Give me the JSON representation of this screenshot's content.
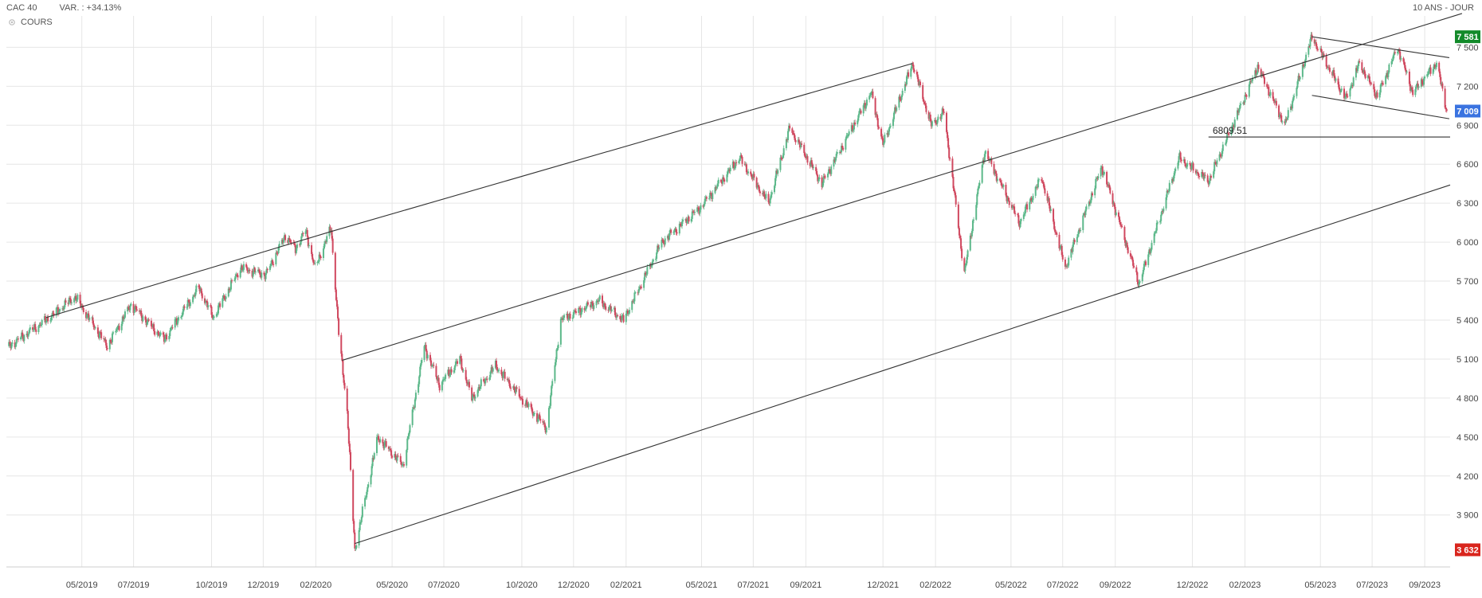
{
  "header": {
    "instrument": "CAC 40",
    "variation": "VAR. : +34.13%",
    "period": "10 ANS - JOUR",
    "series_label": "COURS"
  },
  "icons": {
    "series_legend": "settings-icon"
  },
  "colors": {
    "up": "#5cb88a",
    "down": "#d0485f",
    "grid": "#e6e6e6",
    "line": "#333333",
    "high_badge": "#138a2a",
    "last_badge": "#3a73e0",
    "low_badge": "#d9251d"
  },
  "chart_data": {
    "type": "candlestick",
    "y_ticks": [
      3900,
      4200,
      4500,
      4800,
      5100,
      5400,
      5700,
      6000,
      6300,
      6600,
      6900,
      7200,
      7500
    ],
    "y_tick_labels": [
      "3 900",
      "4 200",
      "4 500",
      "4 800",
      "5 100",
      "5 400",
      "5 700",
      "6 000",
      "6 300",
      "6 600",
      "6 900",
      "7 200",
      "7 500"
    ],
    "ylim": [
      3500,
      7680
    ],
    "xlim": [
      "2019-02-01",
      "2023-10-01"
    ],
    "x_ticks": [
      "2019-05-01",
      "2019-07-01",
      "2019-10-01",
      "2019-12-01",
      "2020-02-01",
      "2020-05-01",
      "2020-07-01",
      "2020-10-01",
      "2020-12-01",
      "2021-02-01",
      "2021-05-01",
      "2021-07-01",
      "2021-09-01",
      "2021-12-01",
      "2022-02-01",
      "2022-05-01",
      "2022-07-01",
      "2022-09-01",
      "2022-12-01",
      "2023-02-01",
      "2023-05-01",
      "2023-07-01",
      "2023-09-01"
    ],
    "x_tick_labels": [
      "05/2019",
      "07/2019",
      "10/2019",
      "12/2019",
      "02/2020",
      "05/2020",
      "07/2020",
      "10/2020",
      "12/2020",
      "02/2021",
      "05/2021",
      "07/2021",
      "09/2021",
      "12/2021",
      "02/2022",
      "05/2022",
      "07/2022",
      "09/2022",
      "12/2022",
      "02/2023",
      "05/2023",
      "07/2023",
      "09/2023"
    ],
    "price_path": [
      [
        "2019-02-04",
        5200
      ],
      [
        "2019-03-20",
        5400
      ],
      [
        "2019-04-23",
        5580
      ],
      [
        "2019-05-31",
        5200
      ],
      [
        "2019-06-28",
        5520
      ],
      [
        "2019-08-06",
        5250
      ],
      [
        "2019-09-16",
        5650
      ],
      [
        "2019-10-03",
        5420
      ],
      [
        "2019-11-04",
        5800
      ],
      [
        "2019-12-04",
        5750
      ],
      [
        "2019-12-27",
        6050
      ],
      [
        "2020-01-08",
        5950
      ],
      [
        "2020-01-20",
        6090
      ],
      [
        "2020-01-31",
        5800
      ],
      [
        "2020-02-19",
        6110
      ],
      [
        "2020-02-28",
        5300
      ],
      [
        "2020-03-09",
        4700
      ],
      [
        "2020-03-18",
        3632
      ],
      [
        "2020-04-14",
        4500
      ],
      [
        "2020-05-14",
        4280
      ],
      [
        "2020-06-08",
        5200
      ],
      [
        "2020-06-26",
        4900
      ],
      [
        "2020-07-20",
        5100
      ],
      [
        "2020-08-03",
        4800
      ],
      [
        "2020-08-31",
        5050
      ],
      [
        "2020-09-30",
        4800
      ],
      [
        "2020-10-30",
        4570
      ],
      [
        "2020-11-16",
        5400
      ],
      [
        "2020-12-31",
        5550
      ],
      [
        "2021-01-29",
        5400
      ],
      [
        "2021-03-15",
        6000
      ],
      [
        "2021-04-30",
        6270
      ],
      [
        "2021-06-15",
        6650
      ],
      [
        "2021-07-19",
        6300
      ],
      [
        "2021-08-13",
        6880
      ],
      [
        "2021-09-20",
        6450
      ],
      [
        "2021-11-17",
        7150
      ],
      [
        "2021-12-01",
        6750
      ],
      [
        "2022-01-05",
        7376
      ],
      [
        "2022-01-27",
        6900
      ],
      [
        "2022-02-11",
        7000
      ],
      [
        "2022-03-07",
        5760
      ],
      [
        "2022-03-31",
        6700
      ],
      [
        "2022-05-11",
        6150
      ],
      [
        "2022-06-06",
        6500
      ],
      [
        "2022-07-04",
        5800
      ],
      [
        "2022-08-16",
        6580
      ],
      [
        "2022-09-29",
        5680
      ],
      [
        "2022-11-15",
        6650
      ],
      [
        "2022-12-20",
        6470
      ],
      [
        "2023-02-16",
        7350
      ],
      [
        "2023-03-20",
        6900
      ],
      [
        "2023-04-21",
        7581
      ],
      [
        "2023-05-31",
        7100
      ],
      [
        "2023-06-16",
        7380
      ],
      [
        "2023-07-07",
        7120
      ],
      [
        "2023-07-31",
        7500
      ],
      [
        "2023-08-18",
        7150
      ],
      [
        "2023-09-15",
        7380
      ],
      [
        "2023-09-27",
        7009
      ]
    ],
    "trendlines": [
      {
        "from": [
          "2019-03-20",
          5420
        ],
        "to": [
          "2020-02-18",
          6080
        ]
      },
      {
        "from": [
          "2020-02-18",
          6080
        ],
        "to": [
          "2022-01-05",
          7376
        ]
      },
      {
        "from": [
          "2020-03-03",
          5090
        ],
        "to": [
          "2023-10-15",
          7760
        ]
      },
      {
        "from": [
          "2020-03-18",
          3680
        ],
        "to": [
          "2023-10-01",
          6440
        ]
      },
      {
        "from": [
          "2023-04-21",
          7581
        ],
        "to": [
          "2023-09-30",
          7420
        ]
      },
      {
        "from": [
          "2023-04-21",
          7130
        ],
        "to": [
          "2023-09-30",
          6950
        ]
      },
      {
        "from": [
          "2022-12-20",
          6809.51
        ],
        "to": [
          "2023-10-01",
          6809.51
        ]
      }
    ],
    "annotations": [
      {
        "text": "6809.51",
        "date": "2022-12-23",
        "value": 6809.51
      }
    ],
    "badges": [
      {
        "text": "7 581",
        "value": 7581,
        "kind": "high"
      },
      {
        "text": "7 009",
        "value": 7009,
        "kind": "last"
      },
      {
        "text": "3 632",
        "value": 3632,
        "kind": "low"
      }
    ]
  }
}
